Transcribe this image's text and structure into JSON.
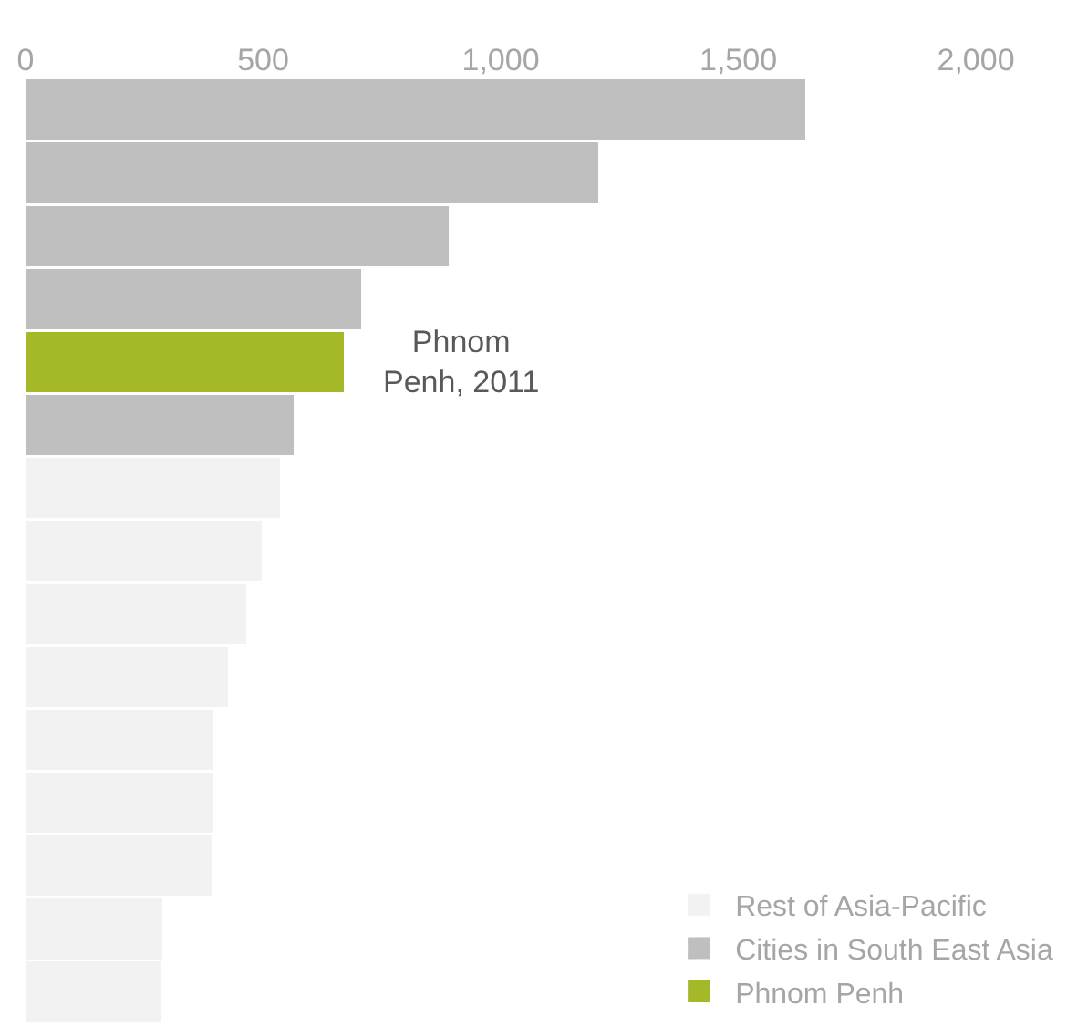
{
  "chart_data": {
    "type": "bar",
    "orientation": "horizontal",
    "stacked": true,
    "categories": [
      null,
      null,
      null,
      null,
      null,
      null,
      null,
      null,
      null,
      null,
      null,
      null,
      null,
      null,
      null
    ],
    "series": [
      {
        "name": "Phnom Penh",
        "color": "#a5b827",
        "values": [
          null,
          null,
          null,
          null,
          669,
          null,
          null,
          null,
          null,
          null,
          null,
          null,
          null,
          null,
          null
        ]
      },
      {
        "name": "Cities in South East Asia",
        "color": "#bfbfbf",
        "values": [
          1642,
          1205,
          891,
          707,
          null,
          565,
          null,
          null,
          null,
          null,
          null,
          null,
          null,
          null,
          null
        ]
      },
      {
        "name": "Rest of Asia-Pacific",
        "color": "#f2f2f2",
        "values": [
          null,
          null,
          null,
          null,
          null,
          null,
          535,
          497,
          465,
          427,
          395,
          395,
          391,
          287,
          284
        ]
      }
    ],
    "xlim": [
      0,
      2000
    ],
    "xticks": [
      {
        "value": 0,
        "label": "0"
      },
      {
        "value": 500,
        "label": "500"
      },
      {
        "value": 1000,
        "label": "1,000"
      },
      {
        "value": 1500,
        "label": "1,500"
      },
      {
        "value": 2000,
        "label": "2,000"
      }
    ],
    "annotations": [
      "Phnom\nPenh, 2011"
    ],
    "legend": "bottom right"
  }
}
